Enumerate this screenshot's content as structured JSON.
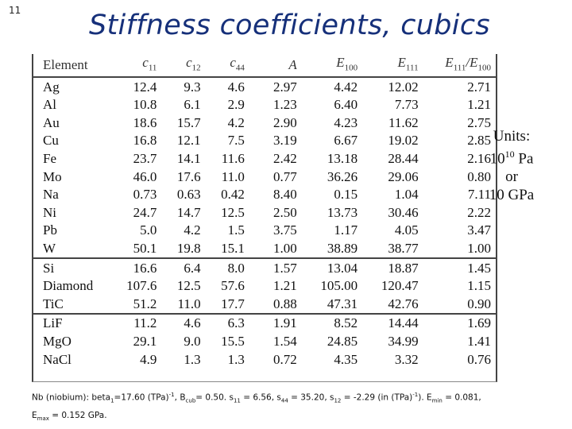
{
  "slide_number": "11",
  "title": "Stiffness coefficients, cubics",
  "table": {
    "headers": {
      "element": "Element",
      "c11_main": "c",
      "c11_sub": "11",
      "c12_main": "c",
      "c12_sub": "12",
      "c44_main": "c",
      "c44_sub": "44",
      "a": "A",
      "e100_main": "E",
      "e100_sub": "100",
      "e111_main": "E",
      "e111_sub": "111",
      "ratio_num": "E",
      "ratio_num_sub": "111",
      "ratio_slash": "/",
      "ratio_den": "E",
      "ratio_den_sub": "100"
    },
    "rows": [
      {
        "el": "Ag",
        "c11": "12.4",
        "c12": "9.3",
        "c44": "4.6",
        "a": "2.97",
        "e100": "4.42",
        "e111": "12.02",
        "ratio": "2.71"
      },
      {
        "el": "Al",
        "c11": "10.8",
        "c12": "6.1",
        "c44": "2.9",
        "a": "1.23",
        "e100": "6.40",
        "e111": "7.73",
        "ratio": "1.21"
      },
      {
        "el": "Au",
        "c11": "18.6",
        "c12": "15.7",
        "c44": "4.2",
        "a": "2.90",
        "e100": "4.23",
        "e111": "11.62",
        "ratio": "2.75"
      },
      {
        "el": "Cu",
        "c11": "16.8",
        "c12": "12.1",
        "c44": "7.5",
        "a": "3.19",
        "e100": "6.67",
        "e111": "19.02",
        "ratio": "2.85"
      },
      {
        "el": "Fe",
        "c11": "23.7",
        "c12": "14.1",
        "c44": "11.6",
        "a": "2.42",
        "e100": "13.18",
        "e111": "28.44",
        "ratio": "2.16"
      },
      {
        "el": "Mo",
        "c11": "46.0",
        "c12": "17.6",
        "c44": "11.0",
        "a": "0.77",
        "e100": "36.26",
        "e111": "29.06",
        "ratio": "0.80"
      },
      {
        "el": "Na",
        "c11": "0.73",
        "c12": "0.63",
        "c44": "0.42",
        "a": "8.40",
        "e100": "0.15",
        "e111": "1.04",
        "ratio": "7.11"
      },
      {
        "el": "Ni",
        "c11": "24.7",
        "c12": "14.7",
        "c44": "12.5",
        "a": "2.50",
        "e100": "13.73",
        "e111": "30.46",
        "ratio": "2.22"
      },
      {
        "el": "Pb",
        "c11": "5.0",
        "c12": "4.2",
        "c44": "1.5",
        "a": "3.75",
        "e100": "1.17",
        "e111": "4.05",
        "ratio": "3.47"
      },
      {
        "el": "W",
        "c11": "50.1",
        "c12": "19.8",
        "c44": "15.1",
        "a": "1.00",
        "e100": "38.89",
        "e111": "38.77",
        "ratio": "1.00"
      },
      {
        "el": "Si",
        "c11": "16.6",
        "c12": "6.4",
        "c44": "8.0",
        "a": "1.57",
        "e100": "13.04",
        "e111": "18.87",
        "ratio": "1.45"
      },
      {
        "el": "Diamond",
        "c11": "107.6",
        "c12": "12.5",
        "c44": "57.6",
        "a": "1.21",
        "e100": "105.00",
        "e111": "120.47",
        "ratio": "1.15"
      },
      {
        "el": "TiC",
        "c11": "51.2",
        "c12": "11.0",
        "c44": "17.7",
        "a": "0.88",
        "e100": "47.31",
        "e111": "42.76",
        "ratio": "0.90"
      },
      {
        "el": "LiF",
        "c11": "11.2",
        "c12": "4.6",
        "c44": "6.3",
        "a": "1.91",
        "e100": "8.52",
        "e111": "14.44",
        "ratio": "1.69"
      },
      {
        "el": "MgO",
        "c11": "29.1",
        "c12": "9.0",
        "c44": "15.5",
        "a": "1.54",
        "e100": "24.85",
        "e111": "34.99",
        "ratio": "1.41"
      },
      {
        "el": "NaCl",
        "c11": "4.9",
        "c12": "1.3",
        "c44": "1.3",
        "a": "0.72",
        "e100": "4.35",
        "e111": "3.32",
        "ratio": "0.76"
      }
    ]
  },
  "units": {
    "label": "Units:",
    "base": "10",
    "exponent": "10",
    "unit": "Pa",
    "or": "or",
    "alt": "10 GPa"
  },
  "footnote": {
    "p1": "Nb (niobium): beta",
    "s1": "1",
    "p2": "=17.60 (TPa)",
    "e1": "-1",
    "p3": ", B",
    "s2": "cub",
    "p4": "= 0.50. s",
    "s3": "11",
    "p5": " = 6.56, s",
    "s4": "44",
    "p6": " = 35.20, s",
    "s5": "12",
    "p7": " = -2.29 (in (TPa)",
    "e2": "-1",
    "p8": "). E",
    "s6": "min",
    "p9": " = 0.081,",
    "p10": "E",
    "s7": "max",
    "p11": " = 0.152 GPa."
  }
}
